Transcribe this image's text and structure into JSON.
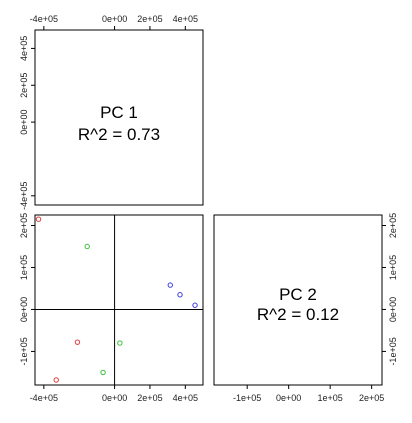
{
  "chart_data": [
    {
      "type": "text",
      "panel": "top-left",
      "lines": [
        "PC 1",
        "R^2 = 0.73"
      ],
      "axes": {
        "top": {
          "range": [
            -450000,
            500000
          ],
          "ticks": [
            -400000,
            0,
            200000,
            400000
          ],
          "labels": [
            "-4e+05",
            "0e+00",
            "2e+05",
            "4e+05"
          ]
        },
        "left": {
          "range": [
            -450000,
            500000
          ],
          "ticks": [
            -400000,
            0,
            200000,
            400000
          ],
          "labels": [
            "-4e+05",
            "0e+00",
            "2e+05",
            "4e+05"
          ]
        }
      }
    },
    {
      "type": "scatter",
      "panel": "bottom-left",
      "xlim": [
        -450000,
        500000
      ],
      "ylim": [
        -180000,
        225000
      ],
      "reference_lines": {
        "x": 0,
        "y": 0
      },
      "axes": {
        "bottom": {
          "ticks": [
            -400000,
            0,
            200000,
            400000
          ],
          "labels": [
            "-4e+05",
            "0e+00",
            "2e+05",
            "4e+05"
          ]
        },
        "left": {
          "ticks": [
            -100000,
            0,
            100000,
            200000
          ],
          "labels": [
            "-1e+05",
            "0e+00",
            "1e+05",
            "2e+05"
          ]
        }
      },
      "grid": false,
      "legend": "none",
      "series": [
        {
          "color": "#e03c3c",
          "points": [
            {
              "x": -430000,
              "y": 215000
            },
            {
              "x": -210000,
              "y": -78000
            },
            {
              "x": -330000,
              "y": -168000
            }
          ]
        },
        {
          "color": "#3cc03c",
          "points": [
            {
              "x": -155000,
              "y": 150000
            },
            {
              "x": 30000,
              "y": -80000
            },
            {
              "x": -65000,
              "y": -150000
            }
          ]
        },
        {
          "color": "#3c3ce0",
          "points": [
            {
              "x": 315000,
              "y": 58000
            },
            {
              "x": 370000,
              "y": 35000
            },
            {
              "x": 455000,
              "y": 10000
            }
          ]
        }
      ]
    },
    {
      "type": "text",
      "panel": "bottom-right",
      "lines": [
        "PC 2",
        "R^2 = 0.12"
      ],
      "axes": {
        "bottom": {
          "range": [
            -180000,
            225000
          ],
          "ticks": [
            -100000,
            0,
            100000,
            200000
          ],
          "labels": [
            "-1e+05",
            "0e+00",
            "1e+05",
            "2e+05"
          ]
        },
        "right": {
          "range": [
            -180000,
            225000
          ],
          "ticks": [
            -100000,
            0,
            100000,
            200000
          ],
          "labels": [
            "-1e+05",
            "0e+00",
            "1e+05",
            "2e+05"
          ]
        }
      }
    }
  ]
}
